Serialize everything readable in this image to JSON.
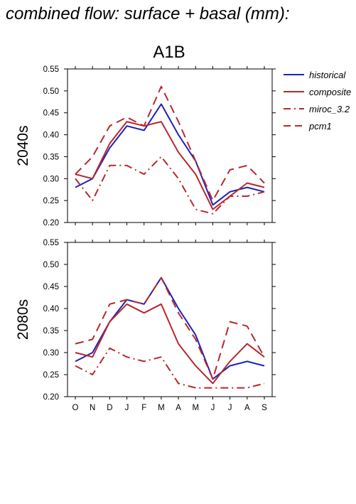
{
  "title": "combined flow: surface + basal (mm):",
  "scenario": "A1B",
  "chart_data": [
    {
      "type": "line",
      "panel": "2040s",
      "ylabel": "2040s",
      "categories": [
        "O",
        "N",
        "D",
        "J",
        "F",
        "M",
        "A",
        "M",
        "J",
        "J",
        "A",
        "S"
      ],
      "y_ticks": [
        "0.20",
        "0.25",
        "0.30",
        "0.35",
        "0.40",
        "0.45",
        "0.50",
        "0.55"
      ],
      "ylim": [
        0.2,
        0.55
      ],
      "series": [
        {
          "name": "historical",
          "color": "#1f22b8",
          "dash": "solid",
          "values": [
            0.28,
            0.3,
            0.37,
            0.42,
            0.41,
            0.47,
            0.4,
            0.34,
            0.24,
            0.27,
            0.28,
            0.27
          ]
        },
        {
          "name": "composite",
          "color": "#b8282d",
          "dash": "solid",
          "values": [
            0.31,
            0.3,
            0.38,
            0.43,
            0.42,
            0.43,
            0.36,
            0.31,
            0.23,
            0.26,
            0.29,
            0.28
          ]
        },
        {
          "name": "miroc_3.2",
          "color": "#b8282d",
          "dash": "dashdot",
          "values": [
            0.3,
            0.25,
            0.33,
            0.33,
            0.31,
            0.35,
            0.3,
            0.23,
            0.22,
            0.26,
            0.26,
            0.27
          ]
        },
        {
          "name": "pcm1",
          "color": "#b8282d",
          "dash": "dash",
          "values": [
            0.31,
            0.35,
            0.42,
            0.44,
            0.42,
            0.51,
            0.43,
            0.34,
            0.25,
            0.32,
            0.33,
            0.29
          ]
        }
      ]
    },
    {
      "type": "line",
      "panel": "2080s",
      "ylabel": "2080s",
      "categories": [
        "O",
        "N",
        "D",
        "J",
        "F",
        "M",
        "A",
        "M",
        "J",
        "J",
        "A",
        "S"
      ],
      "y_ticks": [
        "0.20",
        "0.25",
        "0.30",
        "0.35",
        "0.40",
        "0.45",
        "0.50",
        "0.55"
      ],
      "ylim": [
        0.2,
        0.55
      ],
      "series": [
        {
          "name": "historical",
          "color": "#1f22b8",
          "dash": "solid",
          "values": [
            0.28,
            0.3,
            0.37,
            0.42,
            0.41,
            0.47,
            0.4,
            0.34,
            0.24,
            0.27,
            0.28,
            0.27
          ]
        },
        {
          "name": "composite",
          "color": "#b8282d",
          "dash": "solid",
          "values": [
            0.3,
            0.29,
            0.37,
            0.41,
            0.39,
            0.41,
            0.32,
            0.27,
            0.23,
            0.28,
            0.32,
            0.29
          ]
        },
        {
          "name": "miroc_3.2",
          "color": "#b8282d",
          "dash": "dashdot",
          "values": [
            0.27,
            0.25,
            0.31,
            0.29,
            0.28,
            0.29,
            0.23,
            0.22,
            0.22,
            0.22,
            0.22,
            0.23
          ]
        },
        {
          "name": "pcm1",
          "color": "#b8282d",
          "dash": "dash",
          "values": [
            0.32,
            0.33,
            0.41,
            0.42,
            0.41,
            0.47,
            0.39,
            0.33,
            0.24,
            0.37,
            0.36,
            0.29
          ]
        }
      ]
    }
  ]
}
